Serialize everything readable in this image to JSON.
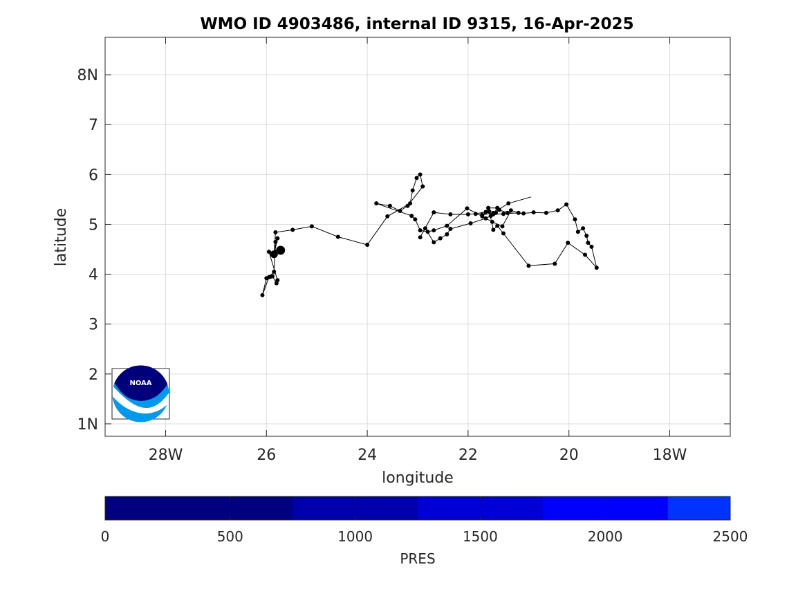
{
  "chart_data": {
    "type": "scatter",
    "title": "WMO ID 4903486, internal ID 9315, 16-Apr-2025",
    "xlabel": "longitude",
    "ylabel": "latitude",
    "xlim": [
      -29.2,
      -16.8
    ],
    "ylim": [
      0.75,
      8.75
    ],
    "x_ticks": [
      -28,
      -26,
      -24,
      -22,
      -20,
      -18
    ],
    "x_tick_labels": [
      "28W",
      "26",
      "24",
      "22",
      "20",
      "18W"
    ],
    "y_ticks": [
      1,
      2,
      3,
      4,
      5,
      6,
      7,
      8
    ],
    "y_tick_labels": [
      "1N",
      "2",
      "3",
      "4",
      "5",
      "6",
      "7",
      "8N"
    ],
    "grid": true,
    "track": {
      "x": [
        -25.72,
        -25.85,
        -25.82,
        -25.95,
        -25.78,
        -25.8,
        -25.88,
        -25.92,
        -26.0,
        -26.08,
        -25.95,
        -25.85,
        -25.82,
        -25.78,
        -25.85,
        -25.82,
        -25.48,
        -25.1,
        -24.58,
        -24.0,
        -23.6,
        -23.15,
        -23.1,
        -23.02,
        -22.95,
        -22.9,
        -23.2,
        -23.35,
        -23.55,
        -23.82,
        -23.12,
        -23.05,
        -22.95,
        -22.8,
        -22.68,
        -22.42,
        -22.02,
        -21.72,
        -21.52,
        -21.32,
        -21.15,
        -21.0,
        -21.3,
        -21.5,
        -21.42,
        -21.6,
        -21.65,
        -21.85,
        -22.0,
        -22.35,
        -22.68,
        -22.95,
        -22.85,
        -22.68,
        -22.55,
        -22.42,
        -22.35,
        -21.95,
        -21.65,
        -21.55,
        -21.45,
        -21.38,
        -21.22,
        -20.9,
        -20.7,
        -20.45,
        -20.22,
        -20.05,
        -19.88,
        -19.82,
        -19.72,
        -19.65,
        -19.62,
        -19.55,
        -19.45,
        -19.68,
        -20.02,
        -20.28,
        -20.8,
        -21.3,
        -21.42,
        -21.5,
        -21.58,
        -21.72,
        -21.5,
        -21.2,
        -20.75
      ],
      "y": [
        4.48,
        4.4,
        4.45,
        4.45,
        3.88,
        3.82,
        3.96,
        3.95,
        3.92,
        3.58,
        3.94,
        4.05,
        4.65,
        4.72,
        4.38,
        4.84,
        4.89,
        4.96,
        4.75,
        4.59,
        5.16,
        5.42,
        5.68,
        5.93,
        6.0,
        5.76,
        5.37,
        5.27,
        5.37,
        5.42,
        5.17,
        5.1,
        4.88,
        4.85,
        4.88,
        4.97,
        5.32,
        5.16,
        5.05,
        4.96,
        5.28,
        5.23,
        5.21,
        5.2,
        5.33,
        5.33,
        5.25,
        5.21,
        5.2,
        5.2,
        5.24,
        4.74,
        4.92,
        4.64,
        4.72,
        4.8,
        4.91,
        5.02,
        5.12,
        5.17,
        5.23,
        5.29,
        5.23,
        5.22,
        5.24,
        5.23,
        5.28,
        5.4,
        5.1,
        4.85,
        4.92,
        4.77,
        4.63,
        4.55,
        4.13,
        4.39,
        4.63,
        4.21,
        4.17,
        4.82,
        4.97,
        4.89,
        5.26,
        5.19,
        5.23,
        5.42,
        5.55
      ],
      "markers": true,
      "last_segment_unmarked": true
    },
    "current_position": {
      "x": -25.72,
      "y": 4.48
    },
    "previous_position": {
      "x": -25.85,
      "y": 4.4
    },
    "colorbar": {
      "label": "PRES",
      "range": [
        0,
        2500
      ],
      "tick_values": [
        0,
        500,
        1000,
        1500,
        2000,
        2500
      ],
      "tick_labels": [
        "0",
        "500",
        "1000",
        "1500",
        "2000",
        "2500"
      ],
      "segments": [
        {
          "from": 0,
          "to": 750,
          "color": "#000080"
        },
        {
          "from": 750,
          "to": 1250,
          "color": "#0000aa"
        },
        {
          "from": 1250,
          "to": 1750,
          "color": "#0000d5"
        },
        {
          "from": 1750,
          "to": 2250,
          "color": "#0000ff"
        },
        {
          "from": 2250,
          "to": 2500,
          "color": "#0033ff"
        }
      ]
    },
    "logo": {
      "name": "noaa-logo",
      "text": "NOAA",
      "colors": {
        "dark": "#00007a",
        "light": "#0099ee"
      }
    }
  }
}
